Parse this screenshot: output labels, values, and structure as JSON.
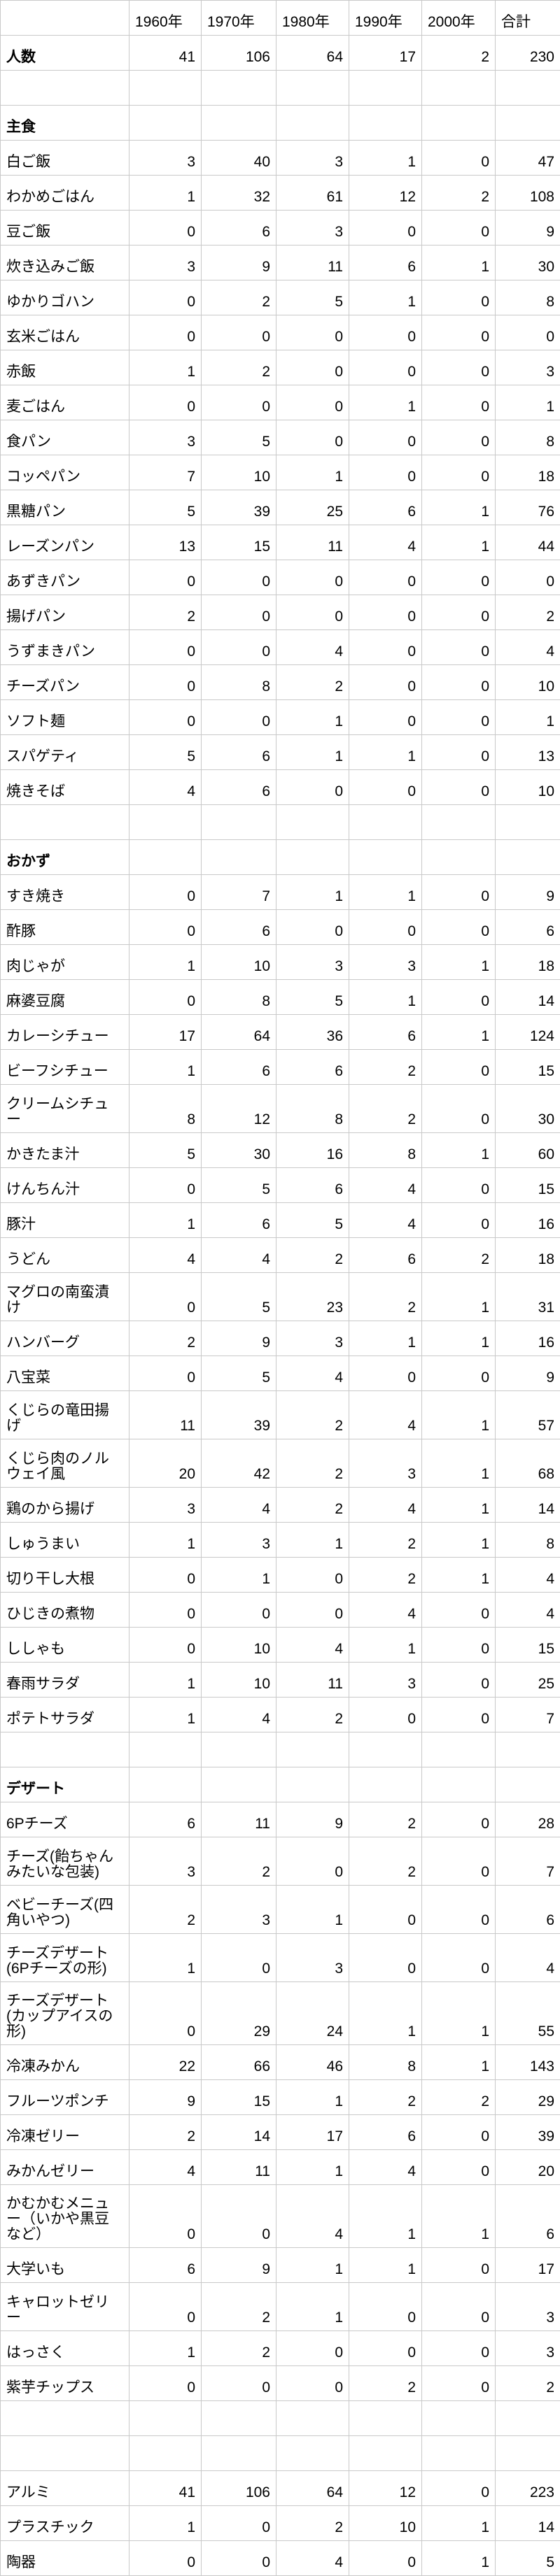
{
  "colors": {
    "grid_line": "#c9c9c9",
    "background": "#ffffff",
    "text": "#000000"
  },
  "table": {
    "columns": [
      "",
      "1960年",
      "1970年",
      "1980年",
      "1990年",
      "2000年",
      "合計"
    ],
    "rows": [
      {
        "label": "人数",
        "bold": true,
        "values": [
          41,
          106,
          64,
          17,
          2,
          230
        ]
      },
      {
        "label": "",
        "values": [
          "",
          "",
          "",
          "",
          "",
          ""
        ]
      },
      {
        "label": "主食",
        "bold": true,
        "values": [
          "",
          "",
          "",
          "",
          "",
          ""
        ]
      },
      {
        "label": "白ご飯",
        "values": [
          3,
          40,
          3,
          1,
          0,
          47
        ]
      },
      {
        "label": "わかめごはん",
        "values": [
          1,
          32,
          61,
          12,
          2,
          108
        ]
      },
      {
        "label": "豆ご飯",
        "values": [
          0,
          6,
          3,
          0,
          0,
          9
        ]
      },
      {
        "label": "炊き込みご飯",
        "values": [
          3,
          9,
          11,
          6,
          1,
          30
        ]
      },
      {
        "label": "ゆかりゴハン",
        "values": [
          0,
          2,
          5,
          1,
          0,
          8
        ]
      },
      {
        "label": "玄米ごはん",
        "values": [
          0,
          0,
          0,
          0,
          0,
          0
        ]
      },
      {
        "label": "赤飯",
        "values": [
          1,
          2,
          0,
          0,
          0,
          3
        ]
      },
      {
        "label": "麦ごはん",
        "values": [
          0,
          0,
          0,
          1,
          0,
          1
        ]
      },
      {
        "label": "食パン",
        "values": [
          3,
          5,
          0,
          0,
          0,
          8
        ]
      },
      {
        "label": "コッペパン",
        "values": [
          7,
          10,
          1,
          0,
          0,
          18
        ]
      },
      {
        "label": "黒糖パン",
        "values": [
          5,
          39,
          25,
          6,
          1,
          76
        ]
      },
      {
        "label": "レーズンパン",
        "values": [
          13,
          15,
          11,
          4,
          1,
          44
        ]
      },
      {
        "label": "あずきパン",
        "values": [
          0,
          0,
          0,
          0,
          0,
          0
        ]
      },
      {
        "label": "揚げパン",
        "values": [
          2,
          0,
          0,
          0,
          0,
          2
        ]
      },
      {
        "label": "うずまきパン",
        "values": [
          0,
          0,
          4,
          0,
          0,
          4
        ]
      },
      {
        "label": "チーズパン",
        "values": [
          0,
          8,
          2,
          0,
          0,
          10
        ]
      },
      {
        "label": "ソフト麺",
        "values": [
          0,
          0,
          1,
          0,
          0,
          1
        ]
      },
      {
        "label": "スパゲティ",
        "values": [
          5,
          6,
          1,
          1,
          0,
          13
        ]
      },
      {
        "label": "焼きそば",
        "values": [
          4,
          6,
          0,
          0,
          0,
          10
        ]
      },
      {
        "label": "",
        "values": [
          "",
          "",
          "",
          "",
          "",
          ""
        ]
      },
      {
        "label": "おかず",
        "bold": true,
        "values": [
          "",
          "",
          "",
          "",
          "",
          ""
        ]
      },
      {
        "label": "すき焼き",
        "values": [
          0,
          7,
          1,
          1,
          0,
          9
        ]
      },
      {
        "label": "酢豚",
        "values": [
          0,
          6,
          0,
          0,
          0,
          6
        ]
      },
      {
        "label": "肉じゃが",
        "values": [
          1,
          10,
          3,
          3,
          1,
          18
        ]
      },
      {
        "label": "麻婆豆腐",
        "values": [
          0,
          8,
          5,
          1,
          0,
          14
        ]
      },
      {
        "label": "カレーシチュー",
        "values": [
          17,
          64,
          36,
          6,
          1,
          124
        ]
      },
      {
        "label": "ビーフシチュー",
        "values": [
          1,
          6,
          6,
          2,
          0,
          15
        ]
      },
      {
        "label": "クリームシチュー",
        "lines": 2,
        "values": [
          8,
          12,
          8,
          2,
          0,
          30
        ]
      },
      {
        "label": "かきたま汁",
        "values": [
          5,
          30,
          16,
          8,
          1,
          60
        ]
      },
      {
        "label": "けんちん汁",
        "values": [
          0,
          5,
          6,
          4,
          0,
          15
        ]
      },
      {
        "label": "豚汁",
        "values": [
          1,
          6,
          5,
          4,
          0,
          16
        ]
      },
      {
        "label": "うどん",
        "values": [
          4,
          4,
          2,
          6,
          2,
          18
        ]
      },
      {
        "label": "マグロの南蛮漬け",
        "lines": 2,
        "values": [
          0,
          5,
          23,
          2,
          1,
          31
        ]
      },
      {
        "label": "ハンバーグ",
        "values": [
          2,
          9,
          3,
          1,
          1,
          16
        ]
      },
      {
        "label": "八宝菜",
        "values": [
          0,
          5,
          4,
          0,
          0,
          9
        ]
      },
      {
        "label": "くじらの竜田揚げ",
        "lines": 2,
        "values": [
          11,
          39,
          2,
          4,
          1,
          57
        ]
      },
      {
        "label": "くじら肉のノルウェイ風",
        "lines": 2,
        "values": [
          20,
          42,
          2,
          3,
          1,
          68
        ]
      },
      {
        "label": "鶏のから揚げ",
        "values": [
          3,
          4,
          2,
          4,
          1,
          14
        ]
      },
      {
        "label": "しゅうまい",
        "values": [
          1,
          3,
          1,
          2,
          1,
          8
        ]
      },
      {
        "label": "切り干し大根",
        "values": [
          0,
          1,
          0,
          2,
          1,
          4
        ]
      },
      {
        "label": "ひじきの煮物",
        "values": [
          0,
          0,
          0,
          4,
          0,
          4
        ]
      },
      {
        "label": "ししゃも",
        "values": [
          0,
          10,
          4,
          1,
          0,
          15
        ]
      },
      {
        "label": "春雨サラダ",
        "values": [
          1,
          10,
          11,
          3,
          0,
          25
        ]
      },
      {
        "label": "ポテトサラダ",
        "values": [
          1,
          4,
          2,
          0,
          0,
          7
        ]
      },
      {
        "label": "",
        "values": [
          "",
          "",
          "",
          "",
          "",
          ""
        ]
      },
      {
        "label": "デザート",
        "bold": true,
        "values": [
          "",
          "",
          "",
          "",
          "",
          ""
        ]
      },
      {
        "label": "6Pチーズ",
        "values": [
          6,
          11,
          9,
          2,
          0,
          28
        ]
      },
      {
        "label": "チーズ(飴ちゃんみたいな包装)",
        "lines": 2,
        "values": [
          3,
          2,
          0,
          2,
          0,
          7
        ]
      },
      {
        "label": "ベビーチーズ(四角いやつ)",
        "lines": 2,
        "values": [
          2,
          3,
          1,
          0,
          0,
          6
        ]
      },
      {
        "label": "チーズデザート(6Pチーズの形)",
        "lines": 2,
        "values": [
          1,
          0,
          3,
          0,
          0,
          4
        ]
      },
      {
        "label": "チーズデザート(カップアイスの形)",
        "lines": 3,
        "values": [
          0,
          29,
          24,
          1,
          1,
          55
        ]
      },
      {
        "label": "冷凍みかん",
        "values": [
          22,
          66,
          46,
          8,
          1,
          143
        ]
      },
      {
        "label": "フルーツポンチ",
        "values": [
          9,
          15,
          1,
          2,
          2,
          29
        ]
      },
      {
        "label": "冷凍ゼリー",
        "values": [
          2,
          14,
          17,
          6,
          0,
          39
        ]
      },
      {
        "label": "みかんゼリー",
        "values": [
          4,
          11,
          1,
          4,
          0,
          20
        ]
      },
      {
        "label": "かむかむメニュー（いかや黒豆など）",
        "lines": 3,
        "values": [
          0,
          0,
          4,
          1,
          1,
          6
        ]
      },
      {
        "label": "大学いも",
        "values": [
          6,
          9,
          1,
          1,
          0,
          17
        ]
      },
      {
        "label": "キャロットゼリー",
        "lines": 2,
        "values": [
          0,
          2,
          1,
          0,
          0,
          3
        ]
      },
      {
        "label": "はっさく",
        "values": [
          1,
          2,
          0,
          0,
          0,
          3
        ]
      },
      {
        "label": "紫芋チップス",
        "values": [
          0,
          0,
          0,
          2,
          0,
          2
        ]
      },
      {
        "label": "",
        "values": [
          "",
          "",
          "",
          "",
          "",
          ""
        ]
      },
      {
        "label": "",
        "values": [
          "",
          "",
          "",
          "",
          "",
          ""
        ]
      },
      {
        "label": "アルミ",
        "values": [
          41,
          106,
          64,
          12,
          0,
          223
        ]
      },
      {
        "label": "プラスチック",
        "values": [
          1,
          0,
          2,
          10,
          1,
          14
        ]
      },
      {
        "label": "陶器",
        "values": [
          0,
          0,
          4,
          0,
          1,
          5
        ]
      }
    ]
  }
}
